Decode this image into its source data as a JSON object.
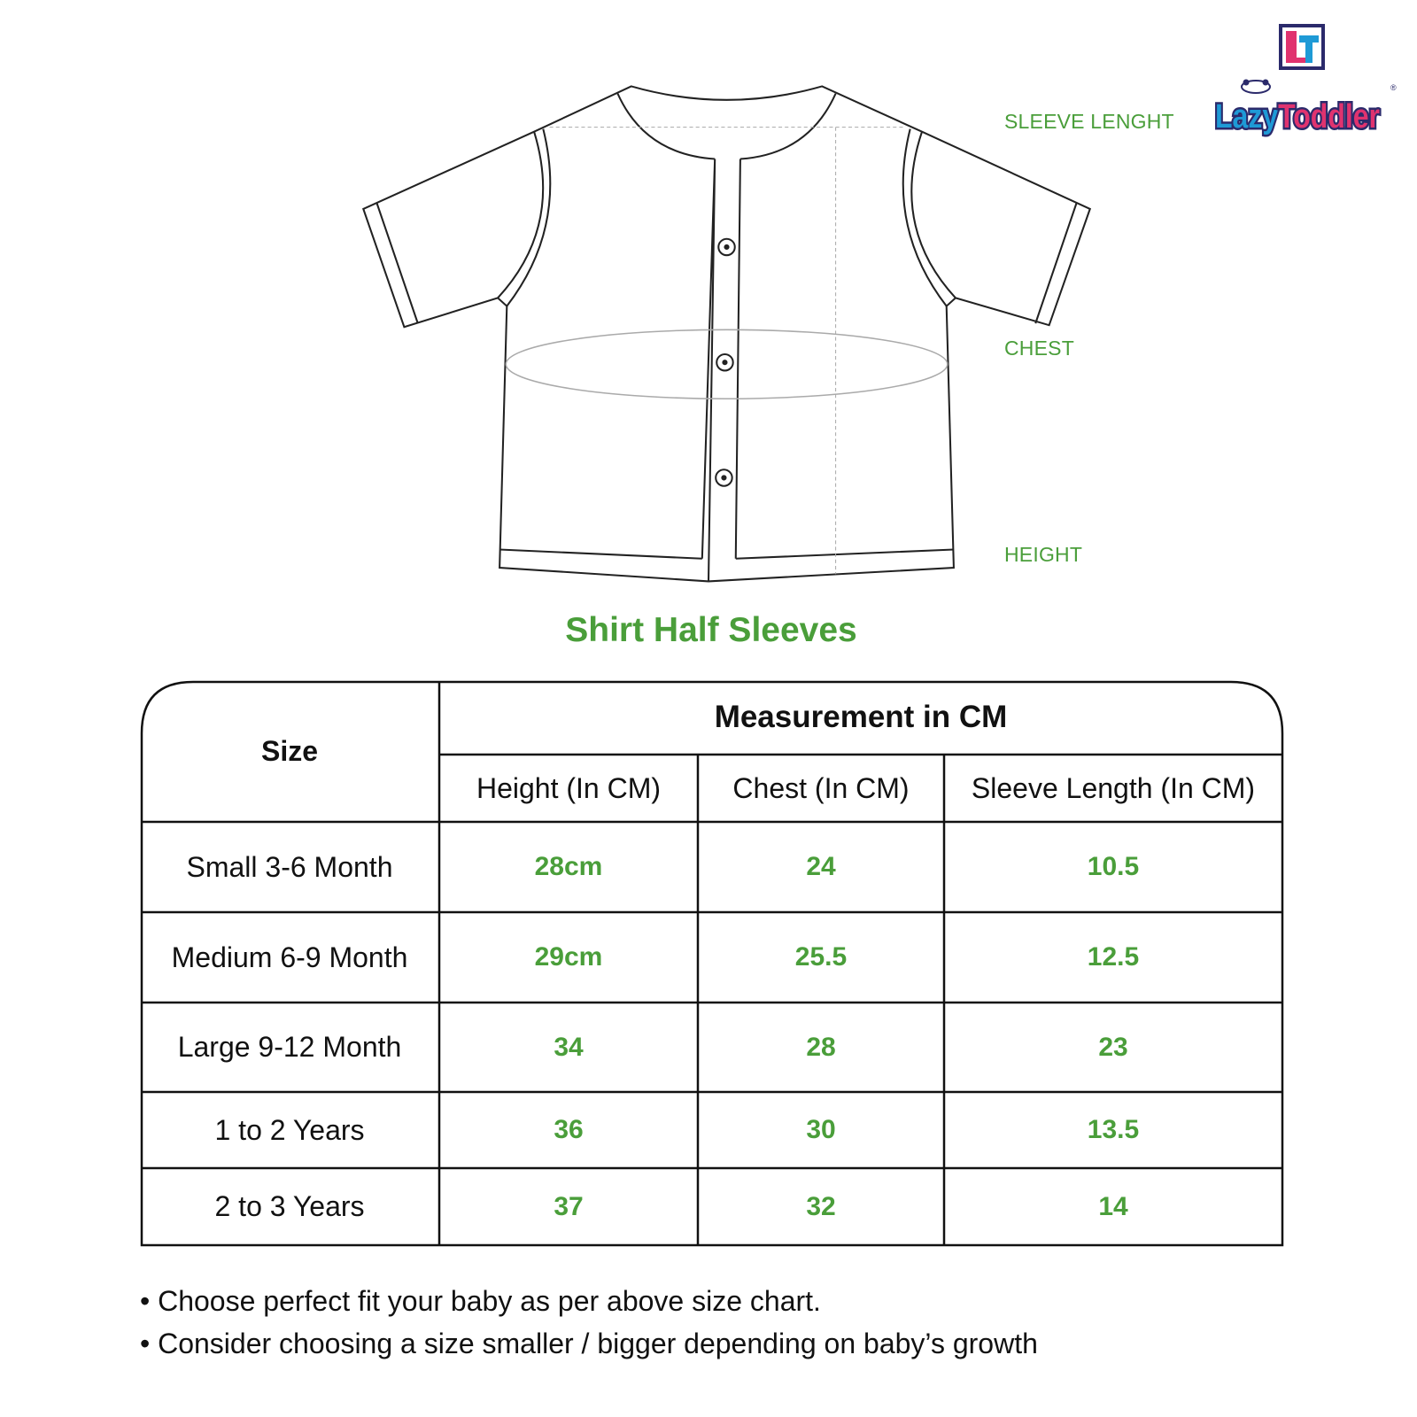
{
  "brand": {
    "name": "LazyToddler",
    "monogram": "LT",
    "colors": {
      "blue": "#1e9ad6",
      "pink": "#e0336f",
      "navy": "#2b2a6b"
    }
  },
  "diagram": {
    "labels": {
      "sleeve": "SLEEVE LENGHT",
      "chest": "CHEST",
      "height": "HEIGHT"
    }
  },
  "title": "Shirt Half Sleeves",
  "table": {
    "size_header": "Size",
    "group_header": "Measurement in CM",
    "columns": [
      "Height (In CM)",
      "Chest (In CM)",
      "Sleeve Length (In CM)"
    ],
    "rows": [
      {
        "size": "Small 3-6 Month",
        "height": "28cm",
        "chest": "24",
        "sleeve": "10.5"
      },
      {
        "size": "Medium 6-9 Month",
        "height": "29cm",
        "chest": "25.5",
        "sleeve": "12.5"
      },
      {
        "size": "Large 9-12 Month",
        "height": "34",
        "chest": "28",
        "sleeve": "23"
      },
      {
        "size": "1 to 2 Years",
        "height": "36",
        "chest": "30",
        "sleeve": "13.5"
      },
      {
        "size": "2 to 3 Years",
        "height": "37",
        "chest": "32",
        "sleeve": "14"
      }
    ]
  },
  "notes": [
    "• Choose perfect fit your baby as per above size chart.",
    "• Consider choosing a size smaller / bigger depending on baby’s growth"
  ],
  "colors": {
    "accent": "#4a9e3a",
    "line": "#111111"
  }
}
